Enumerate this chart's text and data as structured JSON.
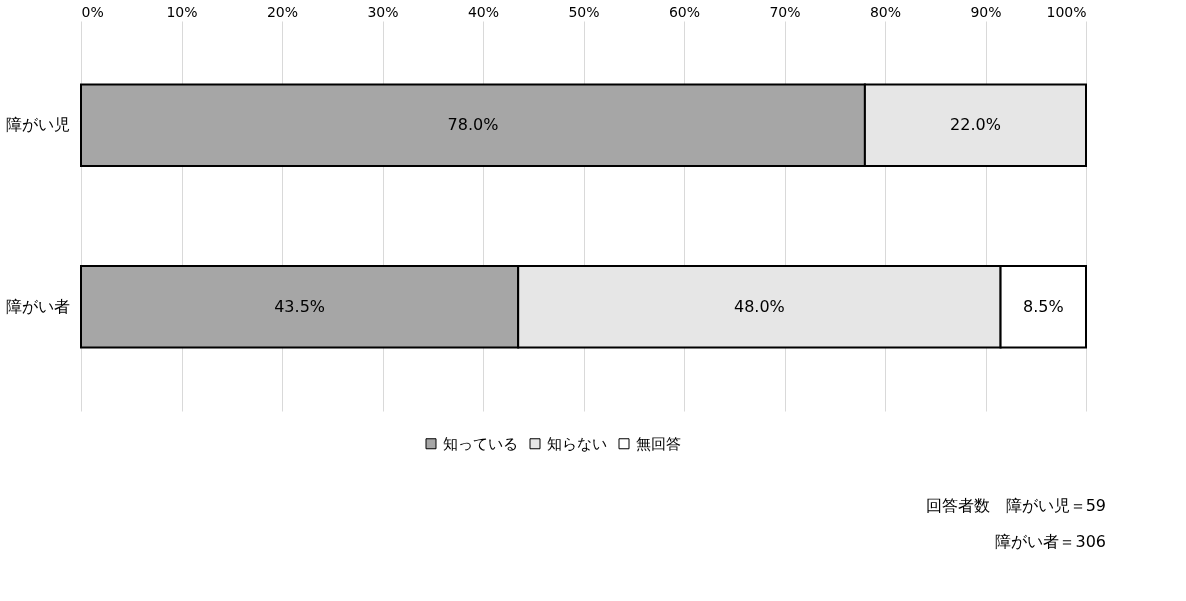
{
  "chart_data": {
    "type": "bar",
    "orientation": "horizontal",
    "stacked": true,
    "categories": [
      "障がい児",
      "障がい者"
    ],
    "series": [
      {
        "name": "知っている",
        "color": "#a6a6a6",
        "values": [
          78.0,
          43.5
        ],
        "value_labels": [
          "78.0%",
          "43.5%"
        ]
      },
      {
        "name": "知らない",
        "color": "#e6e6e6",
        "values": [
          22.0,
          48.0
        ],
        "value_labels": [
          "22.0%",
          "48.0%"
        ]
      },
      {
        "name": "無回答",
        "color": "#ffffff",
        "values": [
          null,
          8.5
        ],
        "value_labels": [
          null,
          "8.5%"
        ]
      }
    ],
    "xlim": [
      0,
      100
    ],
    "xticks": [
      {
        "value": 0,
        "label": "0%"
      },
      {
        "value": 10,
        "label": "10%"
      },
      {
        "value": 20,
        "label": "20%"
      },
      {
        "value": 30,
        "label": "30%"
      },
      {
        "value": 40,
        "label": "40%"
      },
      {
        "value": 50,
        "label": "50%"
      },
      {
        "value": 60,
        "label": "60%"
      },
      {
        "value": 70,
        "label": "70%"
      },
      {
        "value": 80,
        "label": "80%"
      },
      {
        "value": 90,
        "label": "90%"
      },
      {
        "value": 100,
        "label": "100%"
      }
    ],
    "grid": "x",
    "legend": "bottom",
    "annotations": [
      "回答者数　障がい児＝59",
      "障がい者＝306"
    ]
  }
}
